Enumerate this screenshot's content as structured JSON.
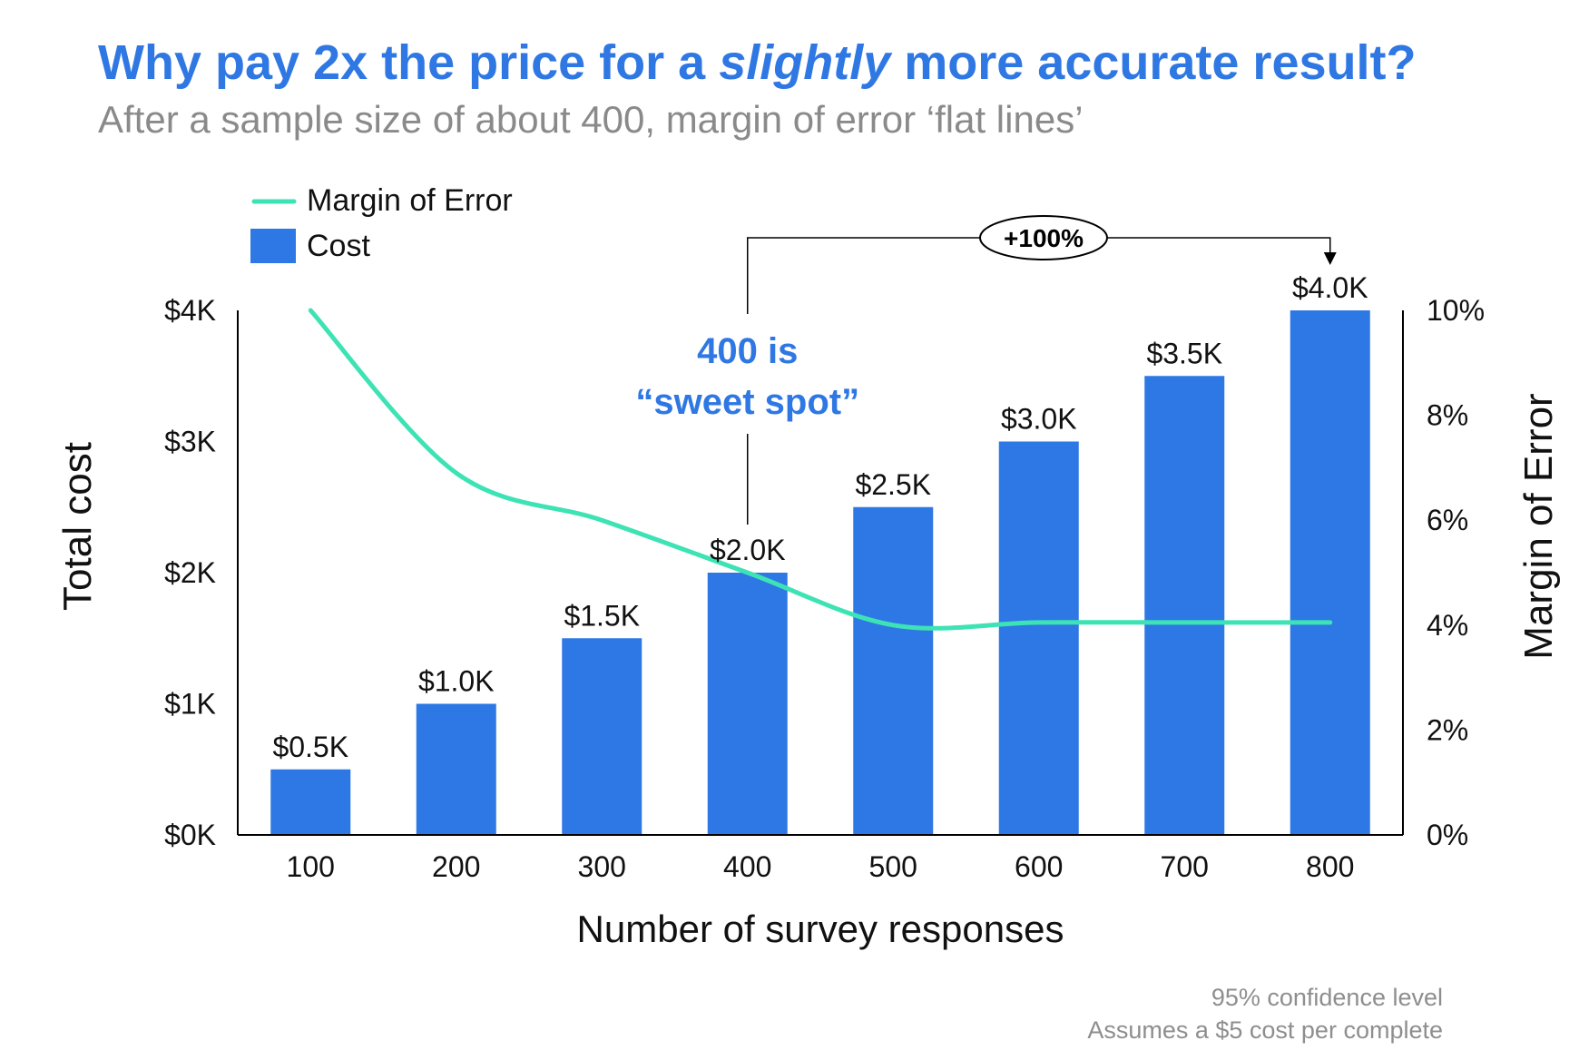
{
  "header": {
    "title_before": "Why pay 2x the price for a ",
    "title_emphasis": "slightly",
    "title_after": " more accurate result?",
    "subtitle": "After a sample size of about 400, margin of error ‘flat lines’"
  },
  "footnotes": {
    "line1": "95% confidence level",
    "line2": "Assumes a $5 cost per complete"
  },
  "colors": {
    "accent": "#2f78e4",
    "bar": "#2e78e5",
    "line": "#3de3b4",
    "text": "#111111",
    "muted": "#8a8a8a"
  },
  "chart_data": {
    "type": "bar",
    "xlabel": "Number of survey responses",
    "ylabel": "Total cost",
    "y2label": "Margin of Error",
    "categories": [
      "100",
      "200",
      "300",
      "400",
      "500",
      "600",
      "700",
      "800"
    ],
    "ylim": [
      0,
      4000
    ],
    "y_ticks": [
      0,
      1000,
      2000,
      3000,
      4000
    ],
    "y_tick_labels": [
      "$0K",
      "$1K",
      "$2K",
      "$3K",
      "$4K"
    ],
    "y2lim": [
      0,
      10
    ],
    "y2_ticks": [
      0,
      2,
      4,
      6,
      8,
      10
    ],
    "y2_tick_labels": [
      "0%",
      "2%",
      "4%",
      "6%",
      "8%",
      "10%"
    ],
    "grid": false,
    "legend_position": "top-left",
    "series": [
      {
        "name": "Cost",
        "type": "bar",
        "axis": "left",
        "values": [
          500,
          1000,
          1500,
          2000,
          2500,
          3000,
          3500,
          4000
        ],
        "labels": [
          "$0.5K",
          "$1.0K",
          "$1.5K",
          "$2.0K",
          "$2.5K",
          "$3.0K",
          "$3.5K",
          "$4.0K"
        ]
      },
      {
        "name": "Margin of Error",
        "type": "line",
        "axis": "right",
        "values": [
          10.0,
          6.9,
          6.0,
          5.0,
          4.0,
          4.05,
          4.05,
          4.05
        ]
      }
    ],
    "annotations": {
      "sweet_spot_line1": "400 is",
      "sweet_spot_line2": "“sweet spot”",
      "sweet_spot_category": "400",
      "increase_label": "+100%",
      "increase_from_category": "400",
      "increase_to_category": "800"
    }
  }
}
